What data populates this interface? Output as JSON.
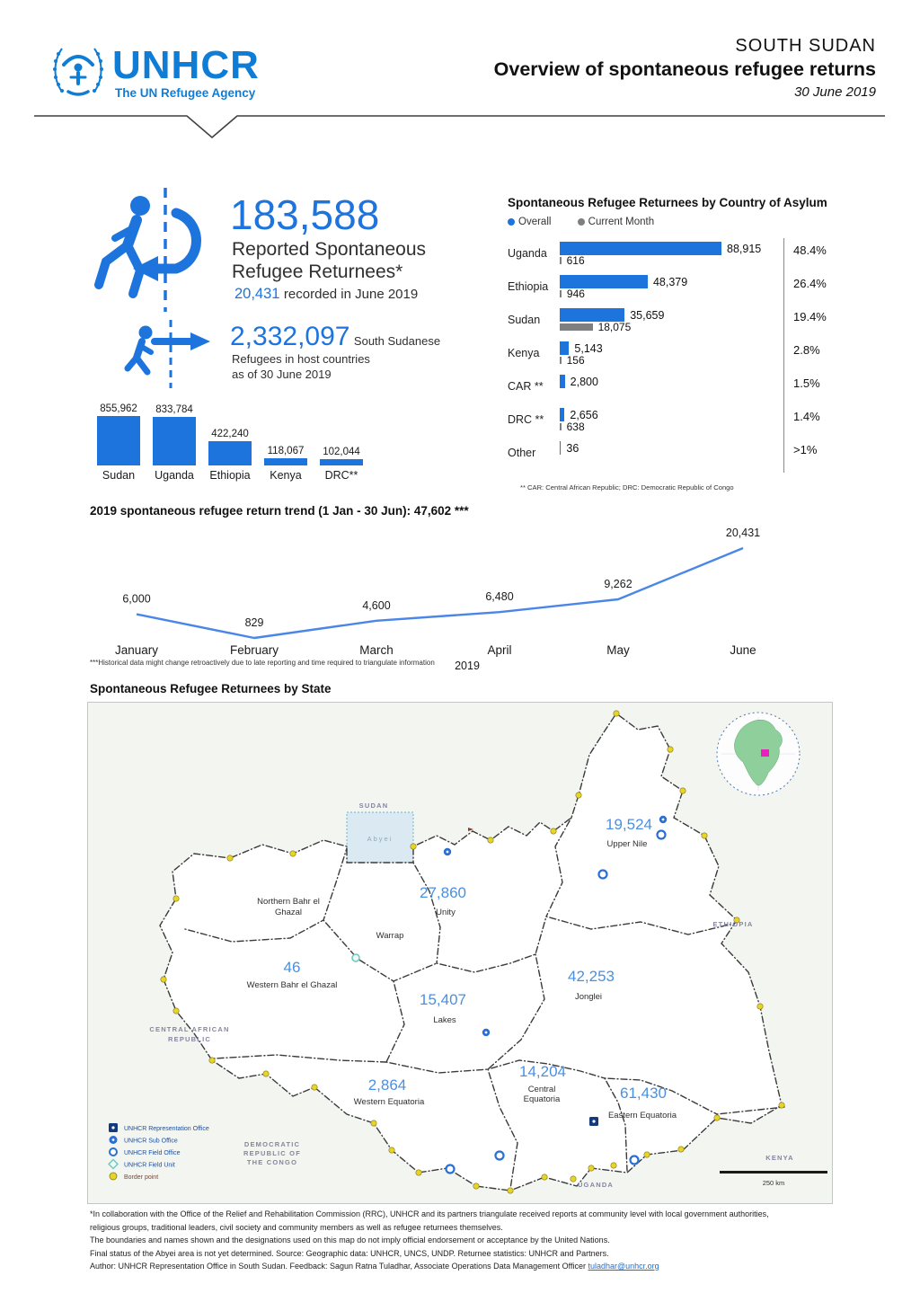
{
  "colors": {
    "accent": "#1E74DD",
    "logo_blue": "#0F7DD6",
    "current_month_gray": "#7F7F7F",
    "map_value_blue": "#4A90E2",
    "link_blue": "#1A6FD4",
    "abyei_fill": "#DBE9F3",
    "globe_green": "#8FCF9C",
    "globe_marker_magenta": "#EC1FC0",
    "border_point_yellow": "#E6D42A"
  },
  "header": {
    "brand": "UNHCR",
    "tagline": "The UN Refugee Agency",
    "country": "SOUTH SUDAN",
    "title": "Overview of spontaneous refugee returns",
    "date": "30 June 2019"
  },
  "summary": {
    "total": "183,588",
    "total_label_1": "Reported Spontaneous",
    "total_label_2": "Refugee Returnees*",
    "month_value": "20,431",
    "month_label": "recorded in June 2019",
    "host_total": "2,332,097",
    "host_label_inline": "South Sudanese",
    "host_label_2": "Refugees in host countries",
    "host_label_3": "as of 30 June 2019"
  },
  "chart_data": [
    {
      "type": "bar",
      "title": "South Sudanese Refugees in host countries",
      "categories": [
        "Sudan",
        "Uganda",
        "Ethiopia",
        "Kenya",
        "DRC**"
      ],
      "values": [
        855962,
        833784,
        422240,
        118067,
        102044
      ],
      "labels": [
        "855,962",
        "833,784",
        "422,240",
        "118,067",
        "102,044"
      ],
      "ylim": [
        0,
        900000
      ]
    },
    {
      "type": "bar",
      "orientation": "horizontal",
      "title": "Spontaneous Refugee Returnees by Country of Asylum",
      "legend": [
        "Overall",
        "Current Month"
      ],
      "categories": [
        "Uganda",
        "Ethiopia",
        "Sudan",
        "Kenya",
        "CAR **",
        "DRC **",
        "Other"
      ],
      "series": [
        {
          "name": "Overall",
          "values": [
            88915,
            48379,
            35659,
            5143,
            2800,
            2656,
            36
          ],
          "labels": [
            "88,915",
            "48,379",
            "35,659",
            "5,143",
            "2,800",
            "2,656",
            "36"
          ]
        },
        {
          "name": "Current Month",
          "values": [
            616,
            946,
            18075,
            156,
            null,
            638,
            null
          ],
          "labels": [
            "616",
            "946",
            "18,075",
            "156",
            "",
            "638",
            ""
          ]
        }
      ],
      "percent": [
        "48.4%",
        "26.4%",
        "19.4%",
        "2.8%",
        "1.5%",
        "1.4%",
        ">1%"
      ],
      "footnote": "** CAR: Central African Republic; DRC: Democratic Republic of Congo",
      "xlim": [
        0,
        90000
      ]
    },
    {
      "type": "line",
      "title": "2019 spontaneous refugee return trend (1 Jan - 30 Jun): 47,602 ***",
      "x": [
        "January",
        "February",
        "March",
        "April",
        "May",
        "June"
      ],
      "values": [
        6000,
        829,
        4600,
        6480,
        9262,
        20431
      ],
      "labels": [
        "6,000",
        "829",
        "4,600",
        "6,480",
        "9,262",
        "20,431"
      ],
      "xlabel": "2019",
      "footnote": "***Historical data might change retroactively due to late reporting and time required to triangulate information",
      "ylim": [
        0,
        22000
      ],
      "grid": false,
      "legend_position": "none"
    }
  ],
  "map": {
    "heading": "Spontaneous Refugee Returnees by State",
    "states": [
      {
        "id": "upper-nile",
        "name": "Upper Nile",
        "name_lines": [
          "Upper Nile"
        ],
        "value": "19,524"
      },
      {
        "id": "unity",
        "name": "Unity",
        "name_lines": [
          "Unity"
        ],
        "value": "27,860"
      },
      {
        "id": "northern-bahr-el-ghazal",
        "name": "Northern Bahr el Ghazal",
        "name_lines": [
          "Northern Bahr el",
          "Ghazal"
        ],
        "value": ""
      },
      {
        "id": "warrap",
        "name": "Warrap",
        "name_lines": [
          "Warrap"
        ],
        "value": ""
      },
      {
        "id": "western-bahr-el-ghazal",
        "name": "Western Bahr el Ghazal",
        "name_lines": [
          "Western Bahr el Ghazal"
        ],
        "value": "46"
      },
      {
        "id": "lakes",
        "name": "Lakes",
        "name_lines": [
          "Lakes"
        ],
        "value": "15,407"
      },
      {
        "id": "jonglei",
        "name": "Jonglei",
        "name_lines": [
          "Jonglei"
        ],
        "value": "42,253"
      },
      {
        "id": "western-equatoria",
        "name": "Western Equatoria",
        "name_lines": [
          "Western Equatoria"
        ],
        "value": "2,864"
      },
      {
        "id": "central-equatoria",
        "name": "Central Equatoria",
        "name_lines": [
          "Central",
          "Equatoria"
        ],
        "value": "14,204"
      },
      {
        "id": "eastern-equatoria",
        "name": "Eastern Equatoria",
        "name_lines": [
          "Eastern Equatoria"
        ],
        "value": "61,430"
      }
    ],
    "neighbors": [
      {
        "id": "sudan",
        "lines": [
          "SUDAN"
        ]
      },
      {
        "id": "ethiopia",
        "lines": [
          "ETHIOPIA"
        ]
      },
      {
        "id": "central-african-republic",
        "lines": [
          "CENTRAL AFRICAN",
          "REPUBLIC"
        ]
      },
      {
        "id": "democratic-republic-of-the-congo",
        "lines": [
          "DEMOCRATIC",
          "REPUBLIC OF",
          "THE CONGO"
        ]
      },
      {
        "id": "uganda",
        "lines": [
          "UGANDA"
        ]
      },
      {
        "id": "kenya",
        "lines": [
          "KENYA"
        ]
      }
    ],
    "abyei_label": "Abyei",
    "legend": [
      {
        "icon": "representation-office",
        "label": "UNHCR Representation Office"
      },
      {
        "icon": "sub-office",
        "label": "UNHCR Sub Office"
      },
      {
        "icon": "field-office",
        "label": "UNHCR Field Office"
      },
      {
        "icon": "field-unit",
        "label": "UNHCR Field Unit"
      },
      {
        "icon": "border-point",
        "label": "Border point"
      }
    ],
    "scale_label": "250 km"
  },
  "footer": {
    "lines": [
      "*In collaboration with the Office of the Relief and Rehabilitation Commission (RRC), UNHCR and its partners triangulate received reports at community level with local government authorities,",
      "religious groups, traditional leaders, civil society and community members as well as refugee returnees themselves.",
      "The boundaries and names shown and the designations used on this map do not imply official endorsement or acceptance by the United Nations.",
      "Final status of the Abyei area is not yet determined. Source: Geographic data: UNHCR, UNCS, UNDP. Returnee statistics: UNHCR and Partners."
    ],
    "last_line": "Author: UNHCR Representation Office in South Sudan. Feedback: Sagun Ratna Tuladhar, Associate Operations Data Management Officer",
    "email": "tuladhar@unhcr.org"
  }
}
